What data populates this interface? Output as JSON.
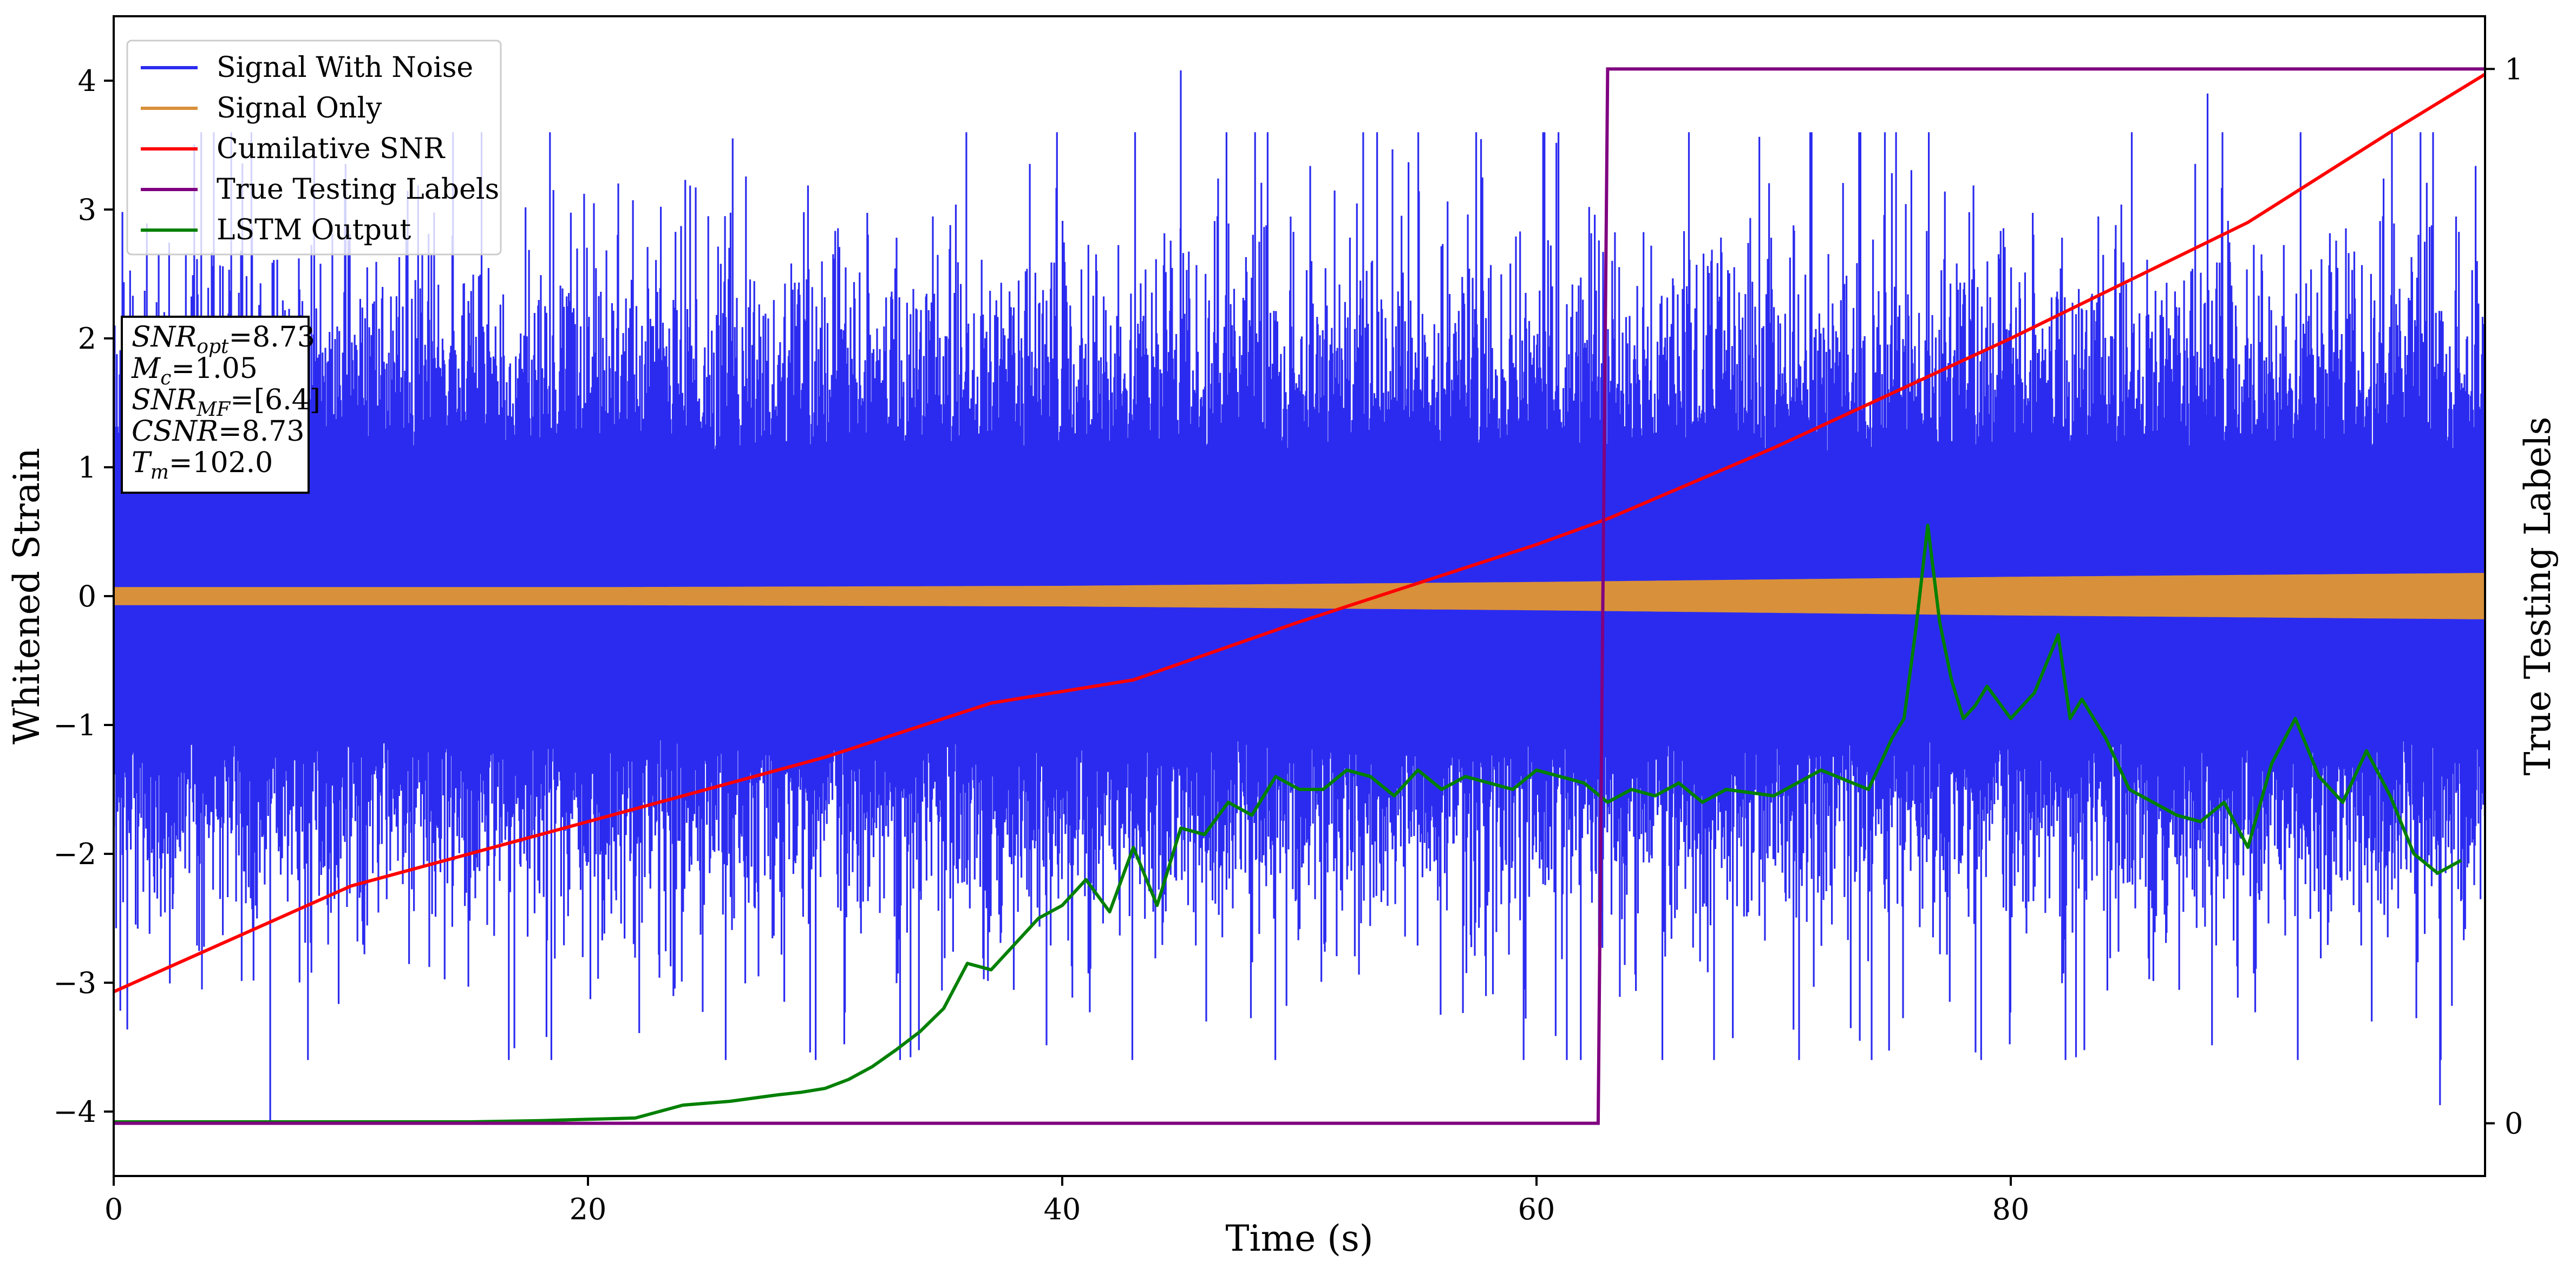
{
  "chart_data": {
    "type": "line",
    "xlabel": "Time (s)",
    "ylabel": "Whitened Strain",
    "y2label": "True Testing Labels",
    "xlim": [
      0,
      100
    ],
    "ylim": [
      -4.5,
      4.5
    ],
    "y2lim": [
      -0.05,
      1.05
    ],
    "xticks": [
      "0",
      "20",
      "40",
      "60",
      "80"
    ],
    "yticks": [
      "−4",
      "−3",
      "−2",
      "−1",
      "0",
      "1",
      "2",
      "3",
      "4"
    ],
    "y2ticks": [
      "0",
      "1"
    ],
    "grid": false,
    "legend_position": "upper-left",
    "colors": {
      "noise": "#2b2bf0",
      "signal": "#d9903a",
      "csnr": "#ff0000",
      "labels": "#800080",
      "lstm": "#008000"
    },
    "series": [
      {
        "name": "Signal With Noise",
        "axis": "left",
        "noise_envelope": {
          "typical_amplitude": 1.3,
          "max_spike": 4.08,
          "min_spike": -4.1,
          "notable_spikes": [
            {
              "x": 6.6,
              "y": -4.1
            },
            {
              "x": 45.0,
              "y": 4.08
            },
            {
              "x": 98.1,
              "y": -3.95
            },
            {
              "x": 88.3,
              "y": 3.9
            }
          ]
        }
      },
      {
        "name": "Signal Only",
        "axis": "left",
        "envelope": {
          "x": [
            0,
            20,
            40,
            60,
            80,
            100
          ],
          "amplitude": [
            0.07,
            0.07,
            0.08,
            0.11,
            0.15,
            0.18
          ]
        }
      },
      {
        "name": "Cumilative SNR",
        "axis": "left",
        "x": [
          0,
          10,
          20,
          30,
          37,
          40,
          43,
          50,
          55,
          60,
          63,
          70,
          80,
          90,
          96,
          100
        ],
        "y": [
          -3.07,
          -2.25,
          -1.75,
          -1.25,
          -0.83,
          -0.74,
          -0.65,
          -0.2,
          0.1,
          0.4,
          0.6,
          1.15,
          2.0,
          2.9,
          3.6,
          4.05
        ]
      },
      {
        "name": "True Testing Labels",
        "axis": "right",
        "x": [
          0,
          62.5,
          62.6,
          63.0,
          100
        ],
        "y": [
          0,
          0,
          0,
          1,
          1
        ]
      },
      {
        "name": "LSTM Output",
        "axis": "left",
        "x": [
          0,
          15,
          18,
          20,
          22,
          24,
          26,
          28,
          29,
          30,
          31,
          32,
          33,
          34,
          35,
          36,
          37,
          38,
          39,
          40,
          41,
          42,
          43,
          44,
          44.5,
          45,
          46,
          47,
          48,
          49,
          50,
          51,
          52,
          53,
          54,
          55,
          56,
          57,
          58,
          59,
          60,
          61,
          62,
          63,
          64,
          65,
          66,
          67,
          68,
          70,
          72,
          74,
          75,
          75.5,
          76,
          76.5,
          77,
          77.5,
          78,
          78.5,
          79,
          80,
          81,
          82,
          82.5,
          83,
          84,
          85,
          86,
          87,
          88,
          89,
          90,
          91,
          92,
          93,
          94,
          95,
          96,
          97,
          98,
          99
        ],
        "y": [
          -4.08,
          -4.08,
          -4.07,
          -4.06,
          -4.05,
          -3.95,
          -3.92,
          -3.87,
          -3.85,
          -3.82,
          -3.75,
          -3.65,
          -3.52,
          -3.38,
          -3.2,
          -2.85,
          -2.9,
          -2.7,
          -2.5,
          -2.4,
          -2.2,
          -2.45,
          -1.95,
          -2.4,
          -2.1,
          -1.8,
          -1.85,
          -1.6,
          -1.7,
          -1.4,
          -1.5,
          -1.5,
          -1.35,
          -1.4,
          -1.55,
          -1.35,
          -1.5,
          -1.4,
          -1.45,
          -1.5,
          -1.35,
          -1.4,
          -1.45,
          -1.6,
          -1.5,
          -1.55,
          -1.45,
          -1.6,
          -1.5,
          -1.55,
          -1.35,
          -1.5,
          -1.1,
          -0.95,
          -0.25,
          0.55,
          -0.2,
          -0.65,
          -0.95,
          -0.85,
          -0.7,
          -0.95,
          -0.75,
          -0.3,
          -0.95,
          -0.8,
          -1.1,
          -1.5,
          -1.6,
          -1.7,
          -1.75,
          -1.6,
          -1.95,
          -1.3,
          -0.95,
          -1.4,
          -1.6,
          -1.2,
          -1.55,
          -2.0,
          -2.15,
          -2.05
        ]
      }
    ],
    "info_box": {
      "lines": [
        {
          "label": "SNR",
          "sub": "opt",
          "value": "=8.73"
        },
        {
          "label": "M",
          "sub": "c",
          "value": "=1.05"
        },
        {
          "label": "SNR",
          "sub": "MF",
          "value": "=[6.4]"
        },
        {
          "label": "CSNR",
          "sub": "",
          "value": "=8.73"
        },
        {
          "label": "T",
          "sub": "m",
          "value": "=102.0"
        }
      ]
    }
  }
}
